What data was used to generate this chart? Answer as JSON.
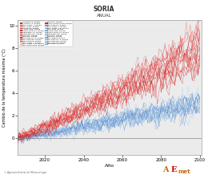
{
  "title": "SORIA",
  "subtitle": "ANUAL",
  "xlabel": "Año",
  "ylabel": "Cambio de la temperatura máxima (°C)",
  "xlim": [
    2006,
    2101
  ],
  "ylim": [
    -1.5,
    10.5
  ],
  "yticks": [
    0,
    2,
    4,
    6,
    8,
    10
  ],
  "xticks": [
    2020,
    2040,
    2060,
    2080,
    2100
  ],
  "year_start": 2006,
  "year_end": 2100,
  "n_rcp85": 18,
  "n_rcp45": 16,
  "legend_entries_left": [
    [
      "#cc3333",
      "ACCESS1.0, RCP85"
    ],
    [
      "#cc3333",
      "ACCESS1.3, RCP85"
    ],
    [
      "#cc3333",
      "BCC-CSM1-1, RCP85"
    ],
    [
      "#dd5555",
      "BNU-ESM, RCP85"
    ],
    [
      "#cc3333",
      "CanESM2, RCP85"
    ],
    [
      "#cc3333",
      "CNRM-CM5, RCP85"
    ],
    [
      "#cc3333",
      "CSIRO-Mk3-6-0, RCP85"
    ],
    [
      "#cc3333",
      "HadGEM2-CC, RCP85"
    ],
    [
      "#cc3333",
      "HadGEM2-ES, RCP85"
    ],
    [
      "#dd4444",
      "inmcm4, RCP85"
    ],
    [
      "#cc3333",
      "MIROC5, RCP85"
    ],
    [
      "#cc3333",
      "MPI-ESM-LR, R, RCP85"
    ],
    [
      "#cc3333",
      "MPI-ESM-MR, RCP85"
    ],
    [
      "#dd3333",
      "MRI-CGCM3, RCP85"
    ],
    [
      "#ee9999",
      "BCC-CSM1-1, RCP45"
    ],
    [
      "#ffaaaa",
      "BCC-CSM1.1-m, RCP45"
    ],
    [
      "#ffbbaa",
      "IPSL-CGMLR-LR, RCP45"
    ]
  ],
  "legend_entries_right": [
    [
      "#cc3333",
      "MIROC5, RCP85"
    ],
    [
      "#cc3333",
      "MIROC-ESM-CHEM, RCP85"
    ],
    [
      "#cc3333",
      "MPI-ESM-LR, RCP85"
    ],
    [
      "#88bbdd",
      "BCC-CSM1-1, RCP45"
    ],
    [
      "#88aacc",
      "BCC-CSM1.1-m, RCP45"
    ],
    [
      "#aaccee",
      "BNU-ESM, RCP45"
    ],
    [
      "#7799bb",
      "CNRM-CM5, RCP45"
    ],
    [
      "#88aacc",
      "CSIRO-Mk3-6-0, RCP45"
    ],
    [
      "#7799bb",
      "HadGEM2-ES, RCP45"
    ],
    [
      "#aabbcc",
      "inmcm4, RCP45"
    ],
    [
      "#88bbdd",
      "MIROC5, RCP45"
    ],
    [
      "#7799bb",
      "IPL-CGMLR, RCP45"
    ],
    [
      "#88aacc",
      "MPI-ESM-LR, R, RCP45"
    ],
    [
      "#88bbdd",
      "MPI-ESM-MR, RCP45"
    ],
    [
      "#6699bb",
      "MRI-CGCM3, RCP45"
    ],
    [
      "#88aacc",
      "MRI-ESM1, RCP45"
    ]
  ],
  "rcp85_colors": [
    "#cc2222",
    "#dd3333",
    "#cc1111",
    "#ee4444",
    "#bb2222",
    "#dd2222",
    "#cc3333",
    "#dd4444",
    "#ee5555",
    "#cc2222",
    "#dd1111",
    "#ee2222",
    "#cc3333",
    "#dd2222",
    "#ee3333",
    "#cc1111",
    "#dd3333",
    "#ee2222"
  ],
  "rcp45_colors": [
    "#5599cc",
    "#6699dd",
    "#77aaee",
    "#88bbff",
    "#99ccff",
    "#4488bb",
    "#5599cc",
    "#3377bb",
    "#6699dd",
    "#4488bb",
    "#77aaee",
    "#88bbee",
    "#6699dd",
    "#5588cc",
    "#4477bb",
    "#77aaee"
  ],
  "background_color": "#ebebeb",
  "footer_text": "© Agencia Estatal de Meteorología"
}
